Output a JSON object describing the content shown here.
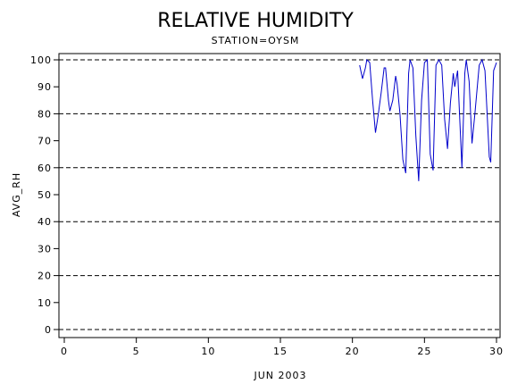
{
  "chart_data": {
    "type": "line",
    "title": "RELATIVE HUMIDITY",
    "subtitle": "STATION=OYSM",
    "x_label": "JUN 2003",
    "y_label": "AVG_RH",
    "xlim": [
      0,
      30
    ],
    "xticks": [
      0,
      5,
      10,
      15,
      20,
      25,
      30
    ],
    "ylim": [
      0,
      100
    ],
    "yticks": [
      0,
      10,
      20,
      30,
      40,
      50,
      60,
      70,
      80,
      90,
      100
    ],
    "reference_lines": [
      0,
      20,
      40,
      60,
      80,
      100
    ],
    "series": [
      {
        "name": "AVG_RH",
        "color": "#0000cc",
        "x": [
          20.5,
          20.7,
          20.9,
          21.0,
          21.2,
          21.4,
          21.6,
          21.8,
          22.0,
          22.2,
          22.3,
          22.5,
          22.6,
          22.8,
          23.0,
          23.1,
          23.3,
          23.5,
          23.7,
          23.9,
          24.0,
          24.2,
          24.4,
          24.6,
          24.8,
          25.0,
          25.2,
          25.4,
          25.6,
          25.8,
          26.0,
          26.2,
          26.4,
          26.6,
          26.8,
          27.0,
          27.1,
          27.3,
          27.6,
          27.8,
          27.9,
          28.1,
          28.3,
          28.5,
          28.8,
          29.0,
          29.2,
          29.5,
          29.6,
          29.8,
          30.0
        ],
        "values": [
          98,
          93,
          97,
          100,
          99,
          85,
          73,
          80,
          88,
          97,
          97,
          85,
          81,
          85,
          94,
          91,
          80,
          63,
          58,
          95,
          100,
          97,
          72,
          55,
          85,
          99,
          100,
          65,
          59,
          98,
          100,
          98,
          78,
          67,
          84,
          95,
          90,
          96,
          60,
          95,
          100,
          92,
          69,
          80,
          98,
          100,
          96,
          64,
          62,
          96,
          99
        ]
      }
    ]
  }
}
